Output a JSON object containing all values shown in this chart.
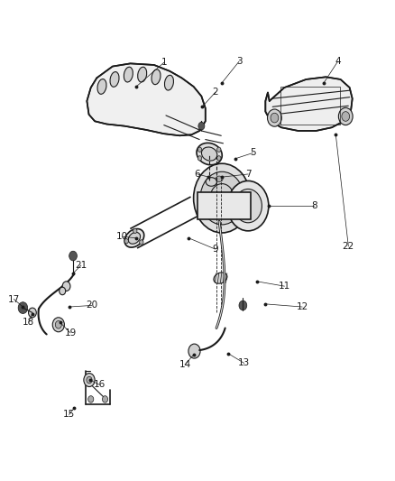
{
  "background_color": "#ffffff",
  "fig_width": 4.38,
  "fig_height": 5.33,
  "dpi": 100,
  "line_color": "#1a1a1a",
  "text_color": "#1a1a1a",
  "font_size": 7.5,
  "leaders": {
    "1": {
      "lbl": [
        0.415,
        0.87
      ],
      "pt": [
        0.345,
        0.82
      ]
    },
    "2": {
      "lbl": [
        0.545,
        0.808
      ],
      "pt": [
        0.512,
        0.778
      ]
    },
    "3": {
      "lbl": [
        0.605,
        0.872
      ],
      "pt": [
        0.562,
        0.828
      ]
    },
    "4": {
      "lbl": [
        0.855,
        0.872
      ],
      "pt": [
        0.82,
        0.828
      ]
    },
    "5": {
      "lbl": [
        0.64,
        0.682
      ],
      "pt": [
        0.595,
        0.67
      ]
    },
    "6": {
      "lbl": [
        0.5,
        0.638
      ],
      "pt": [
        0.528,
        0.632
      ]
    },
    "7": {
      "lbl": [
        0.628,
        0.638
      ],
      "pt": [
        0.562,
        0.632
      ]
    },
    "8": {
      "lbl": [
        0.795,
        0.572
      ],
      "pt": [
        0.68,
        0.572
      ]
    },
    "9": {
      "lbl": [
        0.545,
        0.482
      ],
      "pt": [
        0.478,
        0.505
      ]
    },
    "10": {
      "lbl": [
        0.31,
        0.508
      ],
      "pt": [
        0.345,
        0.505
      ]
    },
    "11": {
      "lbl": [
        0.72,
        0.405
      ],
      "pt": [
        0.65,
        0.415
      ]
    },
    "12": {
      "lbl": [
        0.765,
        0.362
      ],
      "pt": [
        0.672,
        0.368
      ]
    },
    "13": {
      "lbl": [
        0.618,
        0.245
      ],
      "pt": [
        0.578,
        0.265
      ]
    },
    "14": {
      "lbl": [
        0.468,
        0.242
      ],
      "pt": [
        0.49,
        0.262
      ]
    },
    "15": {
      "lbl": [
        0.175,
        0.138
      ],
      "pt": [
        0.188,
        0.152
      ]
    },
    "16": {
      "lbl": [
        0.252,
        0.2
      ],
      "pt": [
        0.228,
        0.21
      ]
    },
    "17": {
      "lbl": [
        0.035,
        0.378
      ],
      "pt": [
        0.058,
        0.362
      ]
    },
    "18": {
      "lbl": [
        0.072,
        0.33
      ],
      "pt": [
        0.082,
        0.348
      ]
    },
    "19": {
      "lbl": [
        0.178,
        0.308
      ],
      "pt": [
        0.152,
        0.33
      ]
    },
    "20": {
      "lbl": [
        0.232,
        0.365
      ],
      "pt": [
        0.175,
        0.362
      ]
    },
    "21": {
      "lbl": [
        0.205,
        0.448
      ],
      "pt": [
        0.185,
        0.432
      ]
    },
    "22": {
      "lbl": [
        0.882,
        0.488
      ],
      "pt": [
        0.85,
        0.72
      ]
    }
  }
}
